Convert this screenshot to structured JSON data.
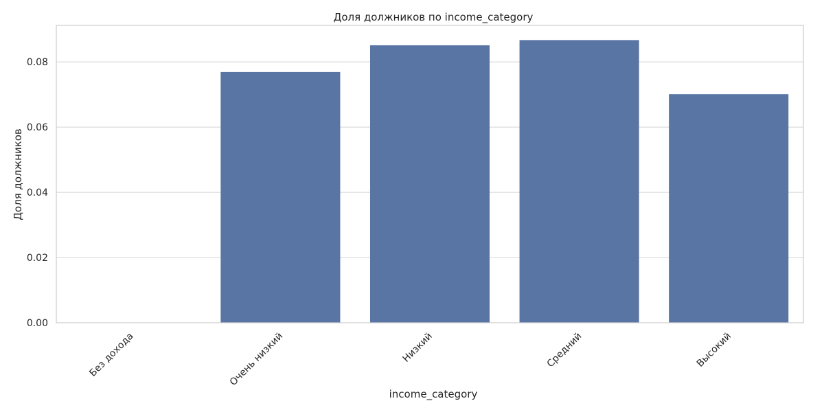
{
  "chart_data": {
    "type": "bar",
    "title": "Доля должников по income_category",
    "xlabel": "income_category",
    "ylabel": "Доля должников",
    "categories": [
      "Без дохода",
      "Очень низкий",
      "Низкий",
      "Средний",
      "Высокий"
    ],
    "values": [
      0.0,
      0.0769,
      0.0851,
      0.0867,
      0.0701
    ],
    "ylim": [
      0,
      0.0912
    ],
    "yticks": [
      0.0,
      0.02,
      0.04,
      0.06,
      0.08
    ],
    "ytick_labels": [
      "0.00",
      "0.02",
      "0.04",
      "0.06",
      "0.08"
    ],
    "grid": "horizontal",
    "bar_color": "#5975a4",
    "grid_color": "#d4d4d4"
  }
}
